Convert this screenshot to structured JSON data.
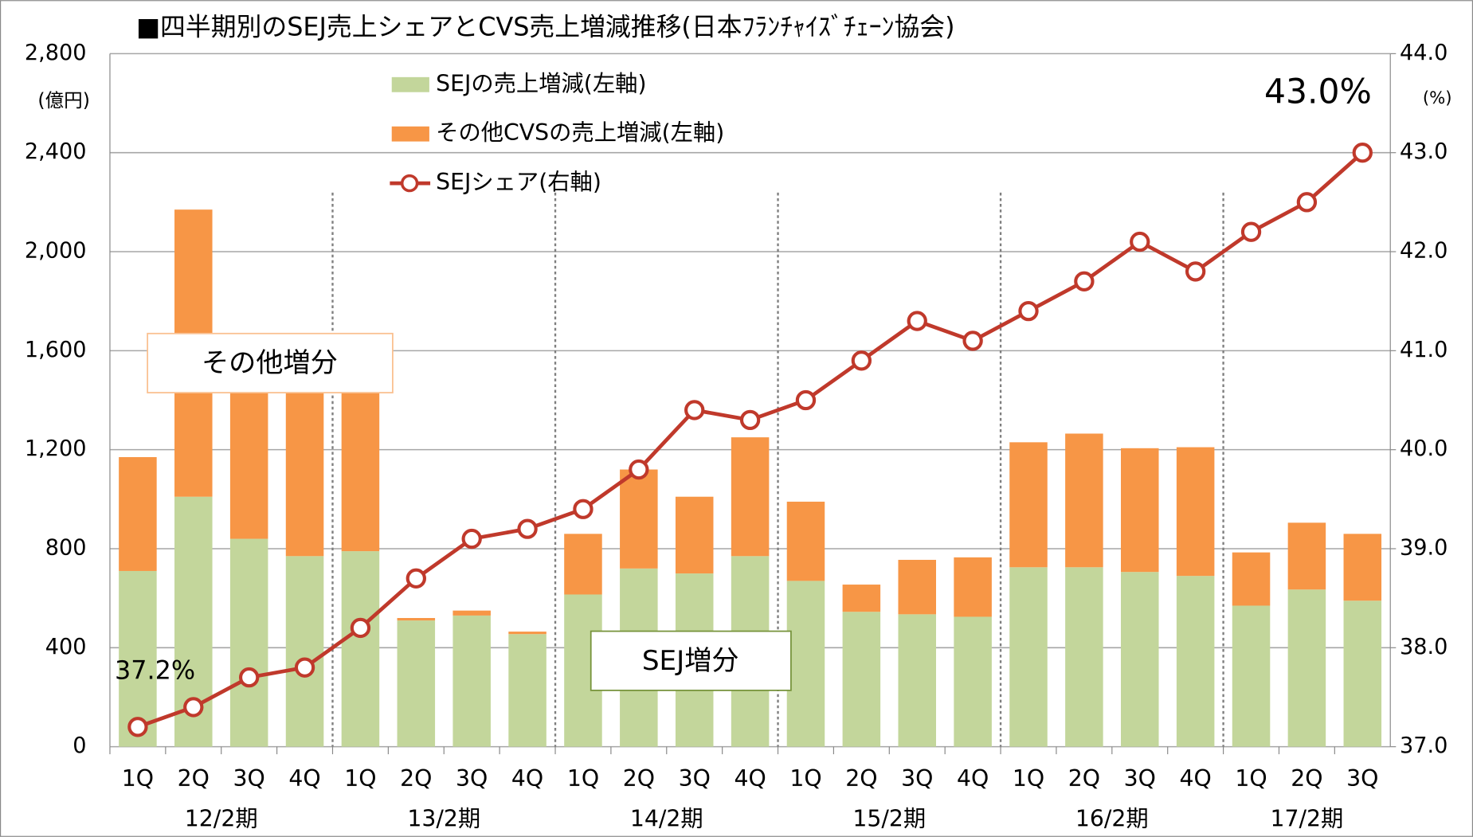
{
  "chart_data": {
    "type": "bar",
    "stacked": true,
    "title": "■四半期別のSEJ売上シェアとCVS売上増減推移(日本ﾌﾗﾝﾁｬｲｽﾞﾁｪｰﾝ協会)",
    "y_unit": "(億円)",
    "y2_unit": "(%)",
    "categories": [
      "1Q",
      "2Q",
      "3Q",
      "4Q",
      "1Q",
      "2Q",
      "3Q",
      "4Q",
      "1Q",
      "2Q",
      "3Q",
      "4Q",
      "1Q",
      "2Q",
      "3Q",
      "4Q",
      "1Q",
      "2Q",
      "3Q",
      "4Q",
      "1Q",
      "2Q",
      "3Q"
    ],
    "groups": [
      "12/2期",
      "13/2期",
      "14/2期",
      "15/2期",
      "16/2期",
      "17/2期"
    ],
    "series": [
      {
        "name": "SEJの売上増減(左軸)",
        "color": "#c3d69b",
        "values": [
          710,
          1010,
          840,
          770,
          790,
          510,
          530,
          455,
          615,
          720,
          700,
          770,
          670,
          545,
          535,
          525,
          725,
          725,
          706,
          690,
          570,
          635,
          590
        ]
      },
      {
        "name": "その他CVSの売上増減(左軸)",
        "color": "#f79646",
        "values": [
          460,
          1160,
          760,
          780,
          710,
          10,
          20,
          10,
          245,
          400,
          310,
          480,
          320,
          110,
          220,
          240,
          505,
          540,
          500,
          520,
          215,
          270,
          270
        ]
      },
      {
        "name": "SEJシェア(右軸)",
        "color": "#c0392b",
        "axis": "y2",
        "type": "line",
        "values": [
          37.2,
          37.4,
          37.7,
          37.8,
          38.2,
          38.7,
          39.1,
          39.2,
          39.4,
          39.8,
          40.4,
          40.3,
          40.5,
          40.9,
          41.3,
          41.1,
          41.4,
          41.7,
          42.1,
          41.8,
          42.2,
          42.5,
          43.0
        ]
      }
    ],
    "ylim": [
      0,
      2800
    ],
    "yticks": [
      0,
      400,
      800,
      {
        "value": 1200,
        "label": "1,200"
      },
      {
        "value": 1600,
        "label": "1,600"
      },
      {
        "value": 2000,
        "label": "2,000"
      },
      {
        "value": 2400,
        "label": "2,400"
      },
      {
        "value": 2800,
        "label": "2,800"
      }
    ],
    "y2lim": [
      37,
      44
    ],
    "y2ticks": [
      {
        "value": 37,
        "label": "37.0"
      },
      {
        "value": 38,
        "label": "38.0"
      },
      {
        "value": 39,
        "label": "39.0"
      },
      {
        "value": 40,
        "label": "40.0"
      },
      {
        "value": 41,
        "label": "41.0"
      },
      {
        "value": 42,
        "label": "42.0"
      },
      {
        "value": 43,
        "label": "43.0"
      },
      {
        "value": 44,
        "label": "44.0"
      }
    ],
    "grid": true,
    "annotations": [
      "37.2%",
      "43.0%",
      "その他増分",
      "SEJ増分"
    ]
  }
}
